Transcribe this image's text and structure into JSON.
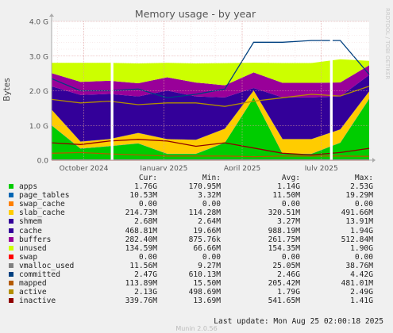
{
  "chart_data": {
    "type": "area",
    "title": "Memory usage - by year",
    "ylabel": "Bytes",
    "watermark": "RRDTOOL / TOBI OETIKER",
    "ylim": [
      0,
      4000000000.0
    ],
    "yticks": [
      {
        "value": 0,
        "label": "0.0"
      },
      {
        "value": 1000000000.0,
        "label": "1.0 G"
      },
      {
        "value": 2000000000.0,
        "label": "2.0 G"
      },
      {
        "value": 3000000000.0,
        "label": "3.0 G"
      },
      {
        "value": 4000000000.0,
        "label": "4.0 G"
      }
    ],
    "x_range": [
      "2024-08-25",
      "2025-08-25"
    ],
    "xticks": [
      {
        "date": "2024-10-01",
        "label": "October 2024"
      },
      {
        "date": "2025-01-01",
        "label": "January 2025"
      },
      {
        "date": "2025-04-01",
        "label": "April 2025"
      },
      {
        "date": "2025-07-01",
        "label": "July 2025"
      }
    ],
    "gaps": [
      [
        "2024-11-01",
        "2024-11-04"
      ],
      [
        "2025-07-11",
        "2025-07-14"
      ]
    ],
    "series": [
      {
        "name": "apps",
        "color": "#00cc00",
        "kind": "area",
        "values": [
          1000000000.0,
          330000000.0,
          400000000.0,
          480000000.0,
          180000000.0,
          180000000.0,
          500000000.0,
          1800000000.0,
          180000000.0,
          180000000.0,
          500000000.0,
          1760000000.0
        ]
      },
      {
        "name": "page_tables",
        "color": "#0066b3",
        "kind": "area",
        "values": [
          5000000.0,
          5000000.0,
          5000000.0,
          5000000.0,
          5000000.0,
          5000000.0,
          5000000.0,
          6000000.0,
          6000000.0,
          6000000.0,
          6000000.0,
          11000000.0
        ]
      },
      {
        "name": "swap_cache",
        "color": "#ff8000",
        "kind": "area",
        "values": [
          0,
          0,
          0,
          0,
          0,
          0,
          0,
          0,
          0,
          0,
          0,
          0
        ]
      },
      {
        "name": "slab_cache",
        "color": "#ffcc00",
        "kind": "area",
        "values": [
          450000000.0,
          200000000.0,
          200000000.0,
          300000000.0,
          420000000.0,
          400000000.0,
          400000000.0,
          200000000.0,
          420000000.0,
          420000000.0,
          380000000.0,
          210000000.0
        ]
      },
      {
        "name": "shmem",
        "color": "#330099",
        "kind": "area",
        "values": [
          3000000.0,
          3000000.0,
          3000000.0,
          3000000.0,
          3000000.0,
          3000000.0,
          3000000.0,
          3000000.0,
          3000000.0,
          3000000.0,
          3000000.0,
          3000000.0
        ]
      },
      {
        "name": "cache",
        "color": "#330099",
        "kind": "area",
        "values": [
          670000000.0,
          1340000000.0,
          1300000000.0,
          1050000000.0,
          1400000000.0,
          1250000000.0,
          900000000.0,
          70000000.0,
          1200000000.0,
          1200000000.0,
          950000000.0,
          470000000.0
        ]
      },
      {
        "name": "buffers",
        "color": "#990099",
        "kind": "area",
        "values": [
          380000000.0,
          380000000.0,
          380000000.0,
          380000000.0,
          380000000.0,
          400000000.0,
          350000000.0,
          450000000.0,
          420000000.0,
          420000000.0,
          400000000.0,
          280000000.0
        ]
      },
      {
        "name": "unused",
        "color": "#ccff00",
        "kind": "area",
        "values": [
          300000000.0,
          550000000.0,
          520000000.0,
          570000000.0,
          420000000.0,
          550000000.0,
          640000000.0,
          280000000.0,
          570000000.0,
          570000000.0,
          670000000.0,
          130000000.0
        ]
      },
      {
        "name": "swap",
        "color": "#ff0000",
        "kind": "line",
        "values": [
          0,
          0,
          0,
          0,
          0,
          0,
          0,
          0,
          0,
          0,
          0,
          0
        ]
      },
      {
        "name": "vmalloc_used",
        "color": "#808080",
        "kind": "line",
        "values": [
          12000000.0,
          12000000.0,
          12000000.0,
          12000000.0,
          12000000.0,
          12000000.0,
          12000000.0,
          12000000.0,
          12000000.0,
          12000000.0,
          12000000.0,
          12000000.0
        ]
      },
      {
        "name": "committed",
        "color": "#004080",
        "kind": "line",
        "values": [
          2350000000.0,
          2000000000.0,
          2000000000.0,
          2050000000.0,
          1800000000.0,
          1900000000.0,
          2050000000.0,
          3400000000.0,
          3400000000.0,
          3450000000.0,
          3450000000.0,
          2470000000.0
        ]
      },
      {
        "name": "mapped",
        "color": "#b35a00",
        "kind": "line",
        "values": [
          200000000.0,
          220000000.0,
          180000000.0,
          150000000.0,
          120000000.0,
          120000000.0,
          120000000.0,
          100000000.0,
          120000000.0,
          120000000.0,
          120000000.0,
          110000000.0
        ]
      },
      {
        "name": "active",
        "color": "#b38f00",
        "kind": "line",
        "values": [
          1750000000.0,
          1650000000.0,
          1700000000.0,
          1600000000.0,
          1650000000.0,
          1650000000.0,
          1550000000.0,
          1700000000.0,
          1800000000.0,
          1900000000.0,
          1850000000.0,
          2130000000.0
        ]
      },
      {
        "name": "inactive",
        "color": "#8f0000",
        "kind": "line",
        "values": [
          500000000.0,
          450000000.0,
          550000000.0,
          600000000.0,
          550000000.0,
          400000000.0,
          500000000.0,
          350000000.0,
          200000000.0,
          150000000.0,
          220000000.0,
          340000000.0
        ]
      }
    ],
    "legend_header": {
      "cur": "Cur:",
      "min": "Min:",
      "avg": "Avg:",
      "max": "Max:"
    },
    "legend": [
      {
        "name": "apps",
        "color": "#00cc00",
        "cur": "1.76G",
        "min": "170.95M",
        "avg": "1.14G",
        "max": "2.53G"
      },
      {
        "name": "page_tables",
        "color": "#0066b3",
        "cur": "10.53M",
        "min": "3.32M",
        "avg": "11.50M",
        "max": "19.29M"
      },
      {
        "name": "swap_cache",
        "color": "#ff8000",
        "cur": "0.00",
        "min": "0.00",
        "avg": "0.00",
        "max": "0.00"
      },
      {
        "name": "slab_cache",
        "color": "#ffcc00",
        "cur": "214.73M",
        "min": "114.28M",
        "avg": "320.51M",
        "max": "491.66M"
      },
      {
        "name": "shmem",
        "color": "#330099",
        "cur": "2.68M",
        "min": "2.64M",
        "avg": "3.27M",
        "max": "13.91M"
      },
      {
        "name": "cache",
        "color": "#330099",
        "cur": "468.81M",
        "min": "19.66M",
        "avg": "988.19M",
        "max": "1.94G"
      },
      {
        "name": "buffers",
        "color": "#990099",
        "cur": "282.40M",
        "min": "875.76k",
        "avg": "261.75M",
        "max": "512.84M"
      },
      {
        "name": "unused",
        "color": "#ccff00",
        "cur": "134.59M",
        "min": "66.66M",
        "avg": "154.35M",
        "max": "1.90G"
      },
      {
        "name": "swap",
        "color": "#ff0000",
        "cur": "0.00",
        "min": "0.00",
        "avg": "0.00",
        "max": "0.00"
      },
      {
        "name": "vmalloc_used",
        "color": "#808080",
        "cur": "11.56M",
        "min": "9.27M",
        "avg": "25.05M",
        "max": "38.76M"
      },
      {
        "name": "committed",
        "color": "#004080",
        "cur": "2.47G",
        "min": "610.13M",
        "avg": "2.46G",
        "max": "4.42G"
      },
      {
        "name": "mapped",
        "color": "#b35a00",
        "cur": "113.89M",
        "min": "15.50M",
        "avg": "205.42M",
        "max": "481.01M"
      },
      {
        "name": "active",
        "color": "#b38f00",
        "cur": "2.13G",
        "min": "498.69M",
        "avg": "1.79G",
        "max": "2.49G"
      },
      {
        "name": "inactive",
        "color": "#8f0000",
        "cur": "339.76M",
        "min": "13.69M",
        "avg": "541.65M",
        "max": "1.41G"
      }
    ],
    "last_update": "Last update: Mon Aug 25 02:00:18 2025",
    "footer": "Munin 2.0.56"
  }
}
